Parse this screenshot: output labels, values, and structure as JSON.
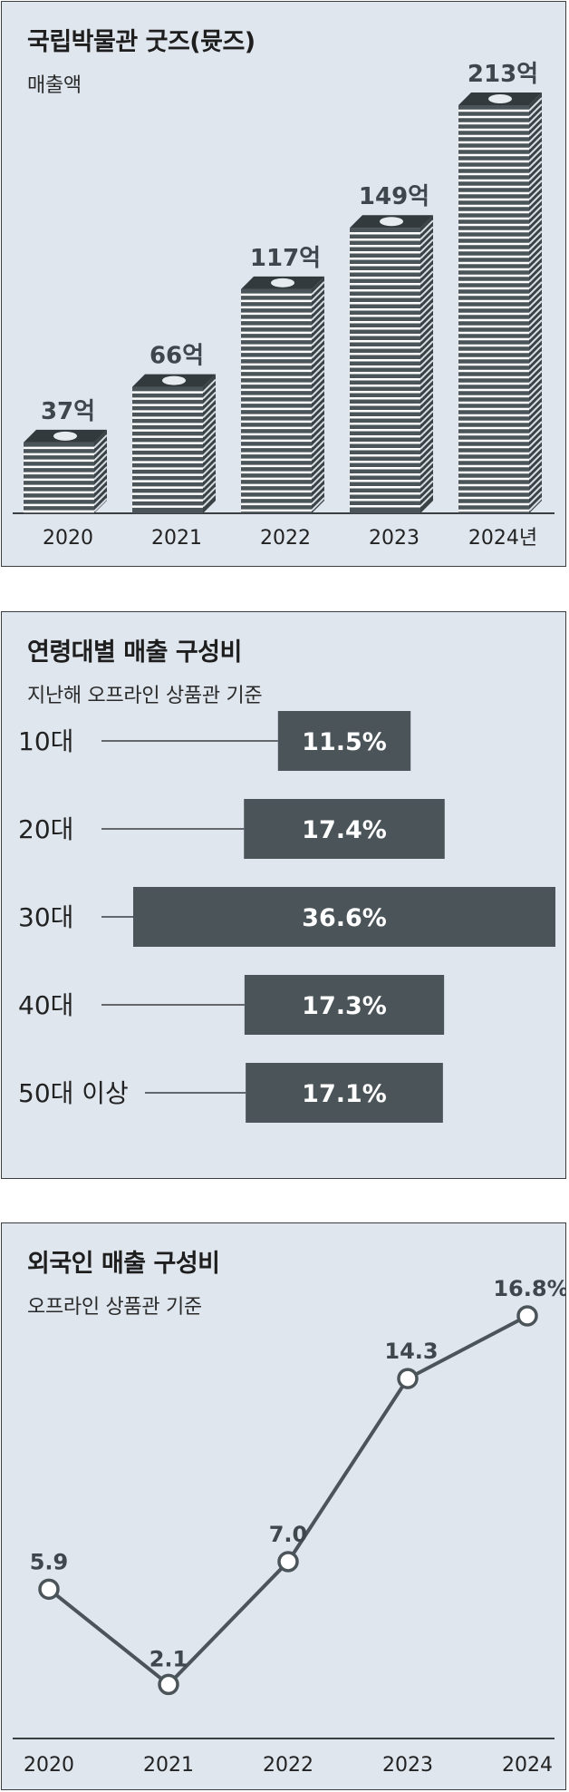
{
  "chart_data": [
    {
      "type": "bar",
      "title": "국립박물관 굿즈(뮷즈)",
      "subtitle": "매출액",
      "categories": [
        "2020",
        "2021",
        "2022",
        "2023",
        "2024년"
      ],
      "values": [
        37,
        66,
        117,
        149,
        213
      ],
      "value_labels": [
        "37억",
        "66억",
        "117억",
        "149억",
        "213억"
      ],
      "ylim": [
        0,
        213
      ],
      "grid": false,
      "colors": {
        "bar": "#4a5459",
        "stripe": "#ffffff",
        "coin": "#e6ebef"
      }
    },
    {
      "type": "bar",
      "orientation": "horizontal",
      "title": "연령대별 매출 구성비",
      "subtitle": "지난해 오프라인 상품관 기준",
      "categories": [
        "10대",
        "20대",
        "30대",
        "40대",
        "50대 이상"
      ],
      "values": [
        11.5,
        17.4,
        36.6,
        17.3,
        17.1
      ],
      "value_labels": [
        "11.5%",
        "17.4%",
        "36.6%",
        "17.3%",
        "17.1%"
      ],
      "grid": false,
      "colors": {
        "bar": "#4a5459",
        "line": "#3b3f42"
      }
    },
    {
      "type": "line",
      "title": "외국인 매출 구성비",
      "subtitle": "오프라인 상품관 기준",
      "x": [
        "2020",
        "2021",
        "2022",
        "2023",
        "2024"
      ],
      "values": [
        5.9,
        2.1,
        7.0,
        14.3,
        16.8
      ],
      "value_labels": [
        "5.9",
        "2.1",
        "7.0",
        "14.3",
        "16.8%"
      ],
      "grid": false,
      "colors": {
        "line": "#4a5459",
        "marker_fill": "#ffffff"
      }
    }
  ]
}
